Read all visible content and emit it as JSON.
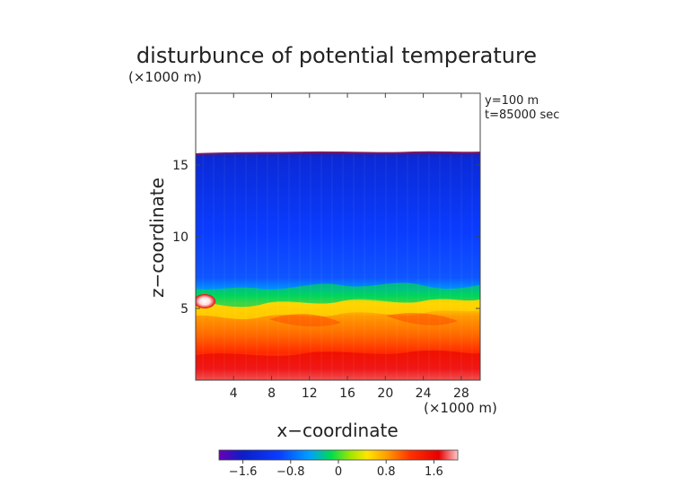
{
  "chart_data": {
    "type": "heatmap",
    "title": "disturbunce of potential temperature",
    "y_unit": "(×1000 m)",
    "x_unit": "(×1000 m)",
    "xlabel": "x−coordinate",
    "ylabel": "z−coordinate",
    "xlim": [
      0,
      30
    ],
    "ylim": [
      0,
      20
    ],
    "xticks": [
      4,
      8,
      12,
      16,
      20,
      24,
      28
    ],
    "yticks": [
      5,
      10,
      15
    ],
    "annotations": [
      "y=100 m",
      "t=85000 sec"
    ],
    "colorbar": {
      "range": [
        -2.0,
        2.0
      ],
      "ticks": [
        -1.6,
        -0.8,
        0,
        0.8,
        1.6
      ],
      "tick_labels": [
        "−1.6",
        "−0.8",
        "0",
        "0.8",
        "1.6"
      ],
      "colormap": [
        "#6a00b4",
        "#0a1ec8",
        "#0a3cff",
        "#00a0ff",
        "#00dc50",
        "#a0e600",
        "#ffe600",
        "#ffa000",
        "#ff3200",
        "#e60000",
        "#ffc8c8"
      ]
    },
    "field": {
      "description_levels": {
        "top_boundary_km": 16,
        "inversion_km": 6,
        "upper_region_value": -1.6,
        "lower_region_value": 1.4,
        "surface_value": 2.0
      }
    }
  }
}
